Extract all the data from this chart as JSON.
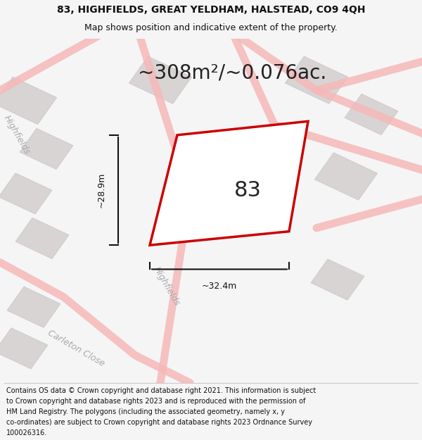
{
  "title_line1": "83, HIGHFIELDS, GREAT YELDHAM, HALSTEAD, CO9 4QH",
  "title_line2": "Map shows position and indicative extent of the property.",
  "area_label": "~308m²/~0.076ac.",
  "plot_number": "83",
  "dim_width": "~32.4m",
  "dim_height": "~28.9m",
  "footer_text": "Contains OS data © Crown copyright and database right 2021. This information is subject to Crown copyright and database rights 2023 and is reproduced with the permission of HM Land Registry. The polygons (including the associated geometry, namely x, y co-ordinates) are subject to Crown copyright and database rights 2023 Ordnance Survey 100026316.",
  "bg_color": "#f5f5f5",
  "map_bg_color": "#f0eeee",
  "road_color": "#f5b8b8",
  "road_alpha": 0.85,
  "building_color": "#d8d4d4",
  "plot_edge_color": "#cc0000",
  "plot_fill_color": "#ffffff",
  "plot_lw": 2.5,
  "dim_line_color": "#111111",
  "street_label_color": "#aaaaaa",
  "title_color": "#111111",
  "footer_color": "#111111"
}
